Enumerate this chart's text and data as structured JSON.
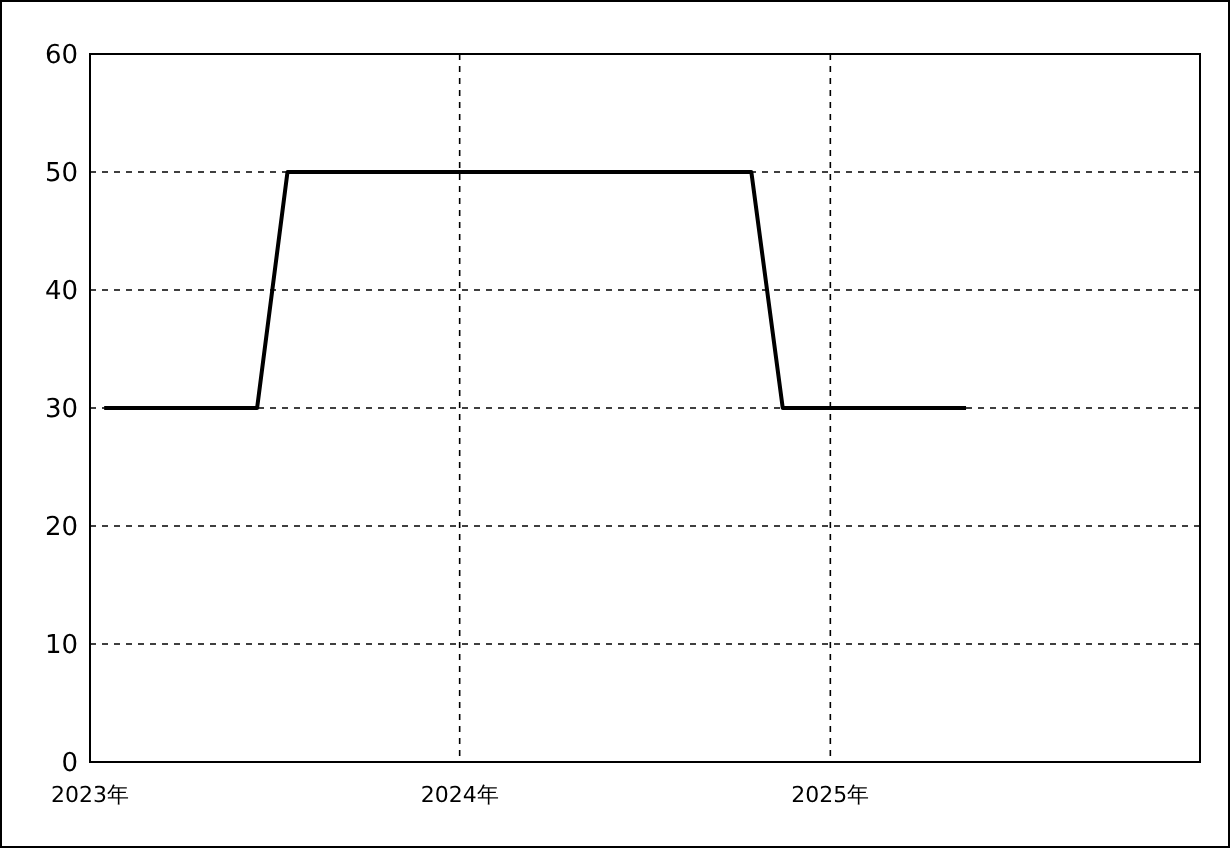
{
  "chart_data": {
    "type": "line",
    "x": [
      "2023-01-15",
      "2023-06-15",
      "2023-07-15",
      "2024-10-15",
      "2024-11-15",
      "2025-05-15"
    ],
    "series": [
      {
        "color": "#000000",
        "values": [
          30,
          30,
          50,
          50,
          30,
          30
        ]
      }
    ],
    "xlim": [
      "2023-01-01",
      "2026-01-01"
    ],
    "xticks": [
      {
        "value": "2023-01-01",
        "label": "2023年"
      },
      {
        "value": "2024-01-01",
        "label": "2024年"
      },
      {
        "value": "2025-01-01",
        "label": "2025年"
      }
    ],
    "ylim": [
      0,
      60
    ],
    "yticks": [
      0,
      10,
      20,
      30,
      40,
      50,
      60
    ],
    "grid": true,
    "marker": "none",
    "line_style": "solid"
  }
}
